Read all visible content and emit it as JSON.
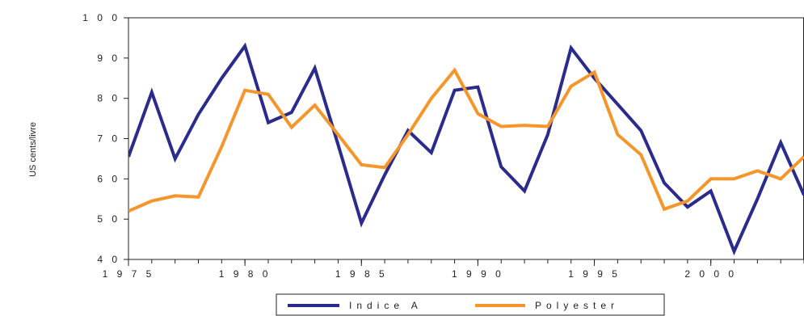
{
  "chart_data": {
    "type": "line",
    "title": "",
    "xlabel": "",
    "ylabel": "US cents/livre",
    "xlim": [
      1975,
      2004
    ],
    "ylim": [
      40,
      100
    ],
    "xticks": [
      1975,
      1980,
      1985,
      1990,
      1995,
      2000
    ],
    "yticks": [
      40,
      50,
      60,
      70,
      80,
      90,
      100
    ],
    "xtick_labels": [
      "1 9 7 5",
      "1 9 8 0",
      "1 9 8 5",
      "1 9 9 0",
      "1 9 9 5",
      "2 0 0 0"
    ],
    "ytick_labels": [
      "4 0",
      "5 0",
      "6 0",
      "7 0",
      "8 0",
      "9 0",
      "1 0 0"
    ],
    "grid": false,
    "legend": "bottom-center",
    "series": [
      {
        "name": "Indice A",
        "color": "#2b2b8c",
        "x": [
          1975,
          1976,
          1977,
          1978,
          1979,
          1980,
          1981,
          1982,
          1983,
          1984,
          1985,
          1986,
          1987,
          1988,
          1989,
          1990,
          1991,
          1992,
          1993,
          1994,
          1995,
          1996,
          1997,
          1998,
          1999,
          2000,
          2001,
          2002,
          2003,
          2004
        ],
        "values": [
          65.5,
          81.5,
          65,
          76,
          85,
          93,
          74,
          76.5,
          87.5,
          68.5,
          49,
          61,
          72,
          66.5,
          82,
          82.8,
          63,
          57,
          71,
          92.5,
          85,
          78.5,
          72,
          59,
          53,
          57,
          42,
          55,
          69,
          56
        ]
      },
      {
        "name": "Polyester",
        "color": "#f4962b",
        "x": [
          1975,
          1976,
          1977,
          1978,
          1979,
          1980,
          1981,
          1982,
          1983,
          1984,
          1985,
          1986,
          1987,
          1988,
          1989,
          1990,
          1991,
          1992,
          1993,
          1994,
          1995,
          1996,
          1997,
          1998,
          1999,
          2000,
          2001,
          2002,
          2003,
          2004
        ],
        "values": [
          52,
          54.5,
          55.8,
          55.5,
          68,
          82,
          81,
          72.8,
          78.3,
          71,
          63.5,
          62.8,
          71,
          80,
          87,
          76.2,
          73,
          73.3,
          73,
          83,
          86.5,
          71,
          66,
          52.5,
          54.5,
          60,
          60,
          62,
          60,
          65.5
        ]
      }
    ]
  }
}
